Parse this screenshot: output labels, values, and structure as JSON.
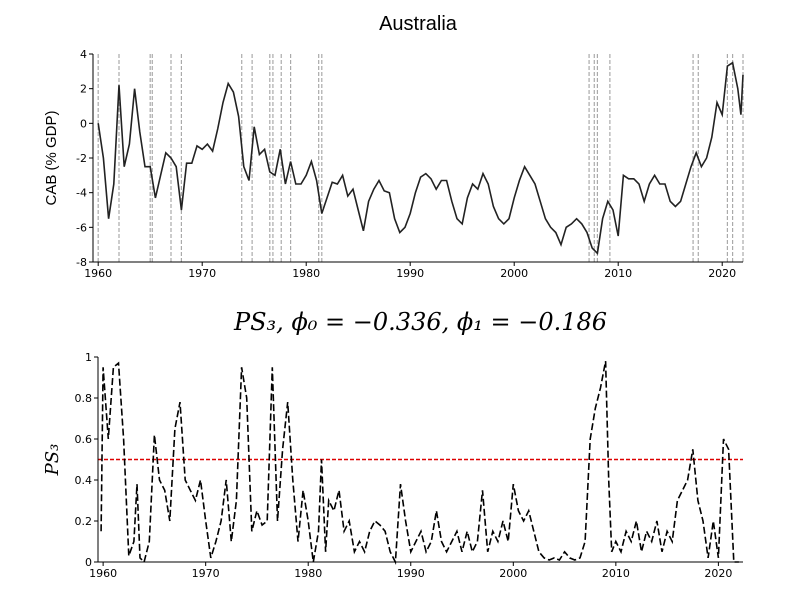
{
  "chart_data": [
    {
      "type": "line",
      "title": "Australia",
      "ylabel": "CAB (% GDP)",
      "xlim": [
        1959.5,
        2022
      ],
      "xticks": [
        1960,
        1970,
        1980,
        1990,
        2000,
        2010,
        2020
      ],
      "ylim": [
        -8,
        4
      ],
      "yticks": [
        -8,
        -6,
        -4,
        -2,
        0,
        2,
        4
      ],
      "x": [
        1960,
        1960.5,
        1961,
        1961.5,
        1962,
        1962.5,
        1963,
        1963.5,
        1964,
        1964.5,
        1965,
        1965.5,
        1966,
        1966.5,
        1967,
        1967.5,
        1968,
        1968.5,
        1969,
        1969.5,
        1970,
        1970.5,
        1971,
        1971.5,
        1972,
        1972.5,
        1973,
        1973.5,
        1974,
        1974.5,
        1975,
        1975.5,
        1976,
        1976.5,
        1977,
        1977.5,
        1978,
        1978.5,
        1979,
        1979.5,
        1980,
        1980.5,
        1981,
        1981.5,
        1982,
        1982.5,
        1983,
        1983.5,
        1984,
        1984.5,
        1985,
        1985.5,
        1986,
        1986.5,
        1987,
        1987.5,
        1988,
        1988.5,
        1989,
        1989.5,
        1990,
        1990.5,
        1991,
        1991.5,
        1992,
        1992.5,
        1993,
        1993.5,
        1994,
        1994.5,
        1995,
        1995.5,
        1996,
        1996.5,
        1997,
        1997.5,
        1998,
        1998.5,
        1999,
        1999.5,
        2000,
        2000.5,
        2001,
        2001.5,
        2002,
        2002.5,
        2003,
        2003.5,
        2004,
        2004.5,
        2005,
        2005.5,
        2006,
        2006.5,
        2007,
        2007.5,
        2008,
        2008.5,
        2009,
        2009.5,
        2010,
        2010.5,
        2011,
        2011.5,
        2012,
        2012.5,
        2013,
        2013.5,
        2014,
        2014.5,
        2015,
        2015.5,
        2016,
        2016.5,
        2017,
        2017.5,
        2018,
        2018.5,
        2019,
        2019.5,
        2020,
        2020.5,
        2021,
        2021.5,
        2021.8,
        2022
      ],
      "series": [
        {
          "color": "#222222",
          "dashed": false,
          "values": [
            0,
            -2,
            -5.5,
            -3.5,
            2.2,
            -2.5,
            -1.2,
            2,
            -0.5,
            -2.5,
            -2.5,
            -4.3,
            -3,
            -1.7,
            -2,
            -2.5,
            -5,
            -2.3,
            -2.3,
            -1.3,
            -1.5,
            -1.2,
            -1.6,
            -0.3,
            1.2,
            2.3,
            1.8,
            0.4,
            -2.5,
            -3.3,
            -0.2,
            -1.8,
            -1.5,
            -2.8,
            -3,
            -1.5,
            -3.5,
            -2.2,
            -3.5,
            -3.5,
            -3,
            -2.2,
            -3.3,
            -5.2,
            -4.3,
            -3.4,
            -3.5,
            -3,
            -4.2,
            -3.8,
            -5,
            -6.2,
            -4.5,
            -3.8,
            -3.3,
            -3.9,
            -4,
            -5.5,
            -6.3,
            -6,
            -5.2,
            -4,
            -3.1,
            -2.9,
            -3.2,
            -3.8,
            -3.3,
            -3.3,
            -4.5,
            -5.5,
            -5.8,
            -4.3,
            -3.5,
            -3.8,
            -2.9,
            -3.5,
            -4.8,
            -5.5,
            -5.8,
            -5.5,
            -4.3,
            -3.3,
            -2.5,
            -3,
            -3.5,
            -4.5,
            -5.5,
            -6,
            -6.3,
            -7,
            -6,
            -5.8,
            -5.5,
            -5.8,
            -6.3,
            -7.2,
            -7.5,
            -5.5,
            -4.5,
            -5,
            -6.5,
            -3,
            -3.2,
            -3.2,
            -3.5,
            -4.5,
            -3.5,
            -3,
            -3.5,
            -3.5,
            -4.5,
            -4.8,
            -4.5,
            -3.5,
            -2.5,
            -1.7,
            -2.5,
            -2,
            -0.8,
            1.2,
            0.5,
            3.3,
            3.5,
            2,
            0.5,
            2.8
          ]
        }
      ],
      "vlines": [
        1960,
        1962,
        1965,
        1965.2,
        1967,
        1968,
        1973.8,
        1974.8,
        1976.5,
        1976.8,
        1977.6,
        1978.5,
        1981.2,
        1981.5,
        2007.2,
        2007.7,
        2008,
        2009.2,
        2017.2,
        2017.7,
        2020.5,
        2021,
        2022
      ],
      "vline_color": "#aaaaaa"
    },
    {
      "type": "line",
      "title": "PS₃, ϕ₀ = −0.336, ϕ₁ = −0.186",
      "ylabel": "PS₃",
      "xlim": [
        1959.5,
        2022.4
      ],
      "xticks": [
        1960,
        1970,
        1980,
        1990,
        2000,
        2010,
        2020
      ],
      "ylim": [
        0,
        1
      ],
      "yticks": [
        0,
        0.2,
        0.4,
        0.6,
        0.8,
        1
      ],
      "x": [
        1959.8,
        1960,
        1960.5,
        1961,
        1961.5,
        1962,
        1962.5,
        1963,
        1963.3,
        1963.6,
        1964,
        1964.5,
        1965,
        1965.5,
        1966,
        1966.5,
        1967,
        1967.5,
        1968,
        1968.5,
        1969,
        1969.5,
        1970,
        1970.5,
        1971,
        1971.5,
        1972,
        1972.5,
        1973,
        1973.5,
        1974,
        1974.5,
        1975,
        1975.5,
        1976,
        1976.5,
        1977,
        1977.5,
        1978,
        1978.5,
        1979,
        1979.5,
        1980,
        1980.5,
        1981,
        1981.3,
        1981.7,
        1982,
        1982.5,
        1983,
        1983.5,
        1984,
        1984.5,
        1985,
        1985.5,
        1986,
        1986.5,
        1987,
        1987.5,
        1988,
        1988.5,
        1989,
        1989.5,
        1990,
        1990.5,
        1991,
        1991.5,
        1992,
        1992.5,
        1993,
        1993.5,
        1994,
        1994.5,
        1995,
        1995.5,
        1996,
        1996.5,
        1997,
        1997.5,
        1998,
        1998.5,
        1999,
        1999.5,
        2000,
        2000.5,
        2001,
        2001.5,
        2002,
        2002.5,
        2003,
        2003.5,
        2004,
        2004.5,
        2005,
        2005.5,
        2006,
        2006.5,
        2007,
        2007.5,
        2008,
        2008.5,
        2009,
        2009.3,
        2009.6,
        2010,
        2010.5,
        2011,
        2011.5,
        2012,
        2012.5,
        2013,
        2013.5,
        2014,
        2014.5,
        2015,
        2015.5,
        2016,
        2016.5,
        2017,
        2017.5,
        2018,
        2018.5,
        2019,
        2019.5,
        2020,
        2020.5,
        2021,
        2021.5,
        2022
      ],
      "series": [
        {
          "color": "#000000",
          "dashed": true,
          "values": [
            0.15,
            0.95,
            0.6,
            0.95,
            0.97,
            0.6,
            0.03,
            0.1,
            0.38,
            0.02,
            0,
            0.1,
            0.62,
            0.4,
            0.35,
            0.2,
            0.65,
            0.78,
            0.4,
            0.35,
            0.3,
            0.4,
            0.2,
            0.02,
            0.1,
            0.2,
            0.4,
            0.1,
            0.3,
            0.95,
            0.8,
            0.15,
            0.25,
            0.18,
            0.2,
            0.95,
            0.2,
            0.55,
            0.78,
            0.4,
            0.1,
            0.35,
            0.2,
            0,
            0.15,
            0.5,
            0.05,
            0.3,
            0.25,
            0.35,
            0.15,
            0.2,
            0.05,
            0.1,
            0.05,
            0.15,
            0.2,
            0.18,
            0.15,
            0.05,
            0,
            0.38,
            0.2,
            0.05,
            0.1,
            0.15,
            0.05,
            0.1,
            0.25,
            0.1,
            0.05,
            0.1,
            0.15,
            0.05,
            0.15,
            0.05,
            0.1,
            0.35,
            0.05,
            0.15,
            0.1,
            0.2,
            0.1,
            0.38,
            0.25,
            0.2,
            0.25,
            0.15,
            0.05,
            0.02,
            0.01,
            0.02,
            0.01,
            0.05,
            0.02,
            0.01,
            0.02,
            0.1,
            0.6,
            0.75,
            0.85,
            0.98,
            0.4,
            0.05,
            0.1,
            0.05,
            0.15,
            0.1,
            0.2,
            0.05,
            0.15,
            0.1,
            0.2,
            0.05,
            0.15,
            0.1,
            0.3,
            0.35,
            0.4,
            0.55,
            0.3,
            0.2,
            0.02,
            0.2,
            0.02,
            0.6,
            0.55,
            0,
            0
          ]
        }
      ],
      "hline": 0.5,
      "hline_color": "#dd0000"
    }
  ]
}
